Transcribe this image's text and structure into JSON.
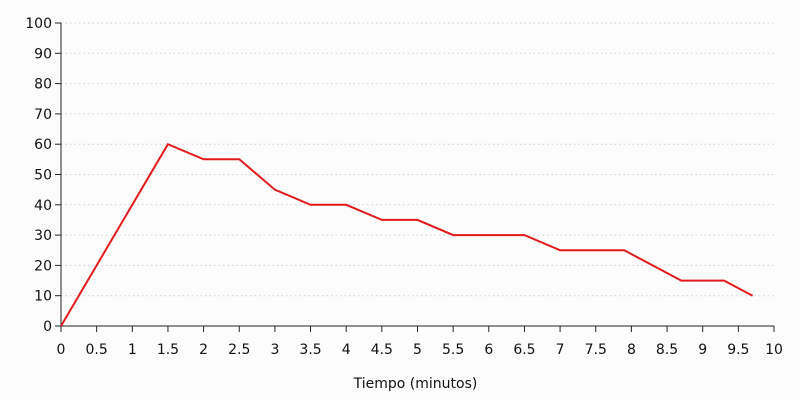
{
  "chart_data": {
    "type": "line",
    "xlabel": "Tiempo (minutos)",
    "ylabel": "",
    "xlim": [
      0,
      10
    ],
    "ylim": [
      0,
      100
    ],
    "x_ticks": [
      "0",
      "0.5",
      "1",
      "1.5",
      "2",
      "2.5",
      "3",
      "3.5",
      "4",
      "4.5",
      "5",
      "5.5",
      "6",
      "6.5",
      "7",
      "7.5",
      "8",
      "8.5",
      "9",
      "9.5",
      "10"
    ],
    "y_ticks": [
      "0",
      "10",
      "20",
      "30",
      "40",
      "50",
      "60",
      "70",
      "80",
      "90",
      "100"
    ],
    "grid": {
      "horizontal": true,
      "vertical": false,
      "style": "dotted"
    },
    "series": [
      {
        "color": "#e31a1c",
        "x": [
          0,
          1.5,
          2,
          2.5,
          3,
          3.5,
          4,
          4.5,
          5,
          5.5,
          6.5,
          7,
          7.9,
          8.7,
          9.3,
          9.7
        ],
        "y": [
          0,
          60,
          55,
          55,
          45,
          40,
          40,
          35,
          35,
          30,
          30,
          25,
          25,
          15,
          15,
          10
        ]
      }
    ]
  }
}
